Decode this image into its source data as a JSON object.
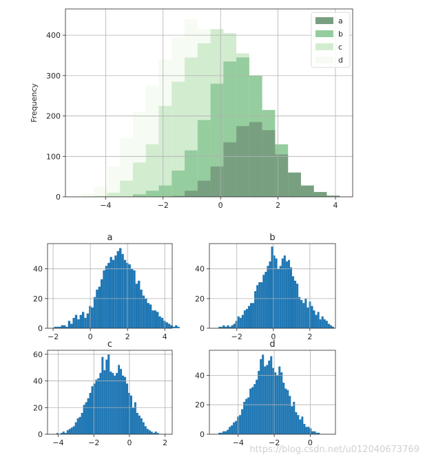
{
  "watermark": "https://blog.csdn.net/u012040673769",
  "colors": {
    "a": "#78a080",
    "b": "#96cd9e",
    "c": "#d2ecd0",
    "d": "#f6fbf3",
    "bar": "#1f77b4",
    "grid": "#b0b0b0",
    "axis": "#262626"
  },
  "chart_data": [
    {
      "type": "bar",
      "subtype": "overlaid-histogram",
      "title": "",
      "xlabel": "",
      "ylabel": "Frequency",
      "xlim": [
        -5.4,
        4.6
      ],
      "ylim": [
        0,
        465
      ],
      "xticks": [
        -4,
        -2,
        0,
        2,
        4
      ],
      "yticks": [
        0,
        100,
        200,
        300,
        400
      ],
      "grid": true,
      "legend": "top-right",
      "bin_edges": [
        -4.85,
        -4.4,
        -3.95,
        -3.5,
        -3.05,
        -2.6,
        -2.15,
        -1.7,
        -1.25,
        -0.8,
        -0.35,
        0.1,
        0.55,
        1.0,
        1.45,
        1.9,
        2.35,
        2.8,
        3.25,
        3.7,
        4.15
      ],
      "series": [
        {
          "name": "a",
          "color": "#78a080",
          "values": [
            0,
            0,
            0,
            0,
            0,
            0,
            0,
            2,
            15,
            40,
            75,
            135,
            175,
            185,
            165,
            105,
            60,
            28,
            12,
            3
          ]
        },
        {
          "name": "b",
          "color": "#96cd9e",
          "values": [
            0,
            0,
            0,
            0,
            6,
            15,
            28,
            65,
            115,
            190,
            280,
            335,
            345,
            300,
            215,
            130,
            60,
            20,
            6,
            0
          ]
        },
        {
          "name": "c",
          "color": "#d2ecd0",
          "values": [
            0,
            2,
            10,
            40,
            85,
            130,
            225,
            285,
            345,
            380,
            415,
            405,
            355,
            235,
            130,
            55,
            15,
            4,
            0,
            0
          ]
        },
        {
          "name": "d",
          "color": "#f6fbf3",
          "values": [
            8,
            25,
            75,
            145,
            210,
            275,
            340,
            395,
            440,
            415,
            385,
            345,
            235,
            130,
            55,
            15,
            3,
            0,
            0,
            0
          ]
        }
      ]
    },
    {
      "type": "bar",
      "subtype": "histogram",
      "title": "a",
      "xlim": [
        -2.3,
        4.4
      ],
      "ylim": [
        0,
        57
      ],
      "xticks": [
        -2,
        0,
        2,
        4
      ],
      "yticks": [
        0,
        20,
        40
      ],
      "bin_start": -1.95,
      "bin_width": 0.125,
      "values": [
        1,
        1,
        1,
        2,
        2,
        1,
        5,
        3,
        7,
        9,
        6,
        9,
        11,
        7,
        10,
        15,
        14,
        21,
        26,
        28,
        33,
        39,
        42,
        44,
        48,
        46,
        49,
        52,
        54,
        50,
        46,
        44,
        43,
        40,
        39,
        30,
        32,
        26,
        22,
        20,
        17,
        16,
        12,
        12,
        11,
        8,
        7,
        5,
        4,
        3,
        2,
        1,
        2,
        1
      ]
    },
    {
      "type": "bar",
      "subtype": "histogram",
      "title": "b",
      "xlim": [
        -3.5,
        3.4
      ],
      "ylim": [
        0,
        57
      ],
      "xticks": [
        -2,
        0,
        2
      ],
      "yticks": [
        0,
        20,
        40
      ],
      "bin_start": -3.0,
      "bin_width": 0.115,
      "values": [
        1,
        1,
        2,
        1,
        2,
        1,
        2,
        3,
        5,
        8,
        7,
        9,
        12,
        13,
        15,
        17,
        17,
        25,
        29,
        31,
        31,
        36,
        38,
        42,
        45,
        55,
        49,
        47,
        40,
        42,
        47,
        49,
        45,
        46,
        41,
        35,
        32,
        30,
        21,
        19,
        17,
        20,
        14,
        18,
        15,
        12,
        9,
        11,
        6,
        8,
        6,
        5,
        3,
        2,
        1
      ]
    },
    {
      "type": "bar",
      "subtype": "histogram",
      "title": "c",
      "xlim": [
        -4.6,
        2.4
      ],
      "ylim": [
        0,
        63
      ],
      "xticks": [
        -4,
        -2,
        0,
        2
      ],
      "yticks": [
        0,
        20,
        40,
        60
      ],
      "bin_start": -4.1,
      "bin_width": 0.115,
      "values": [
        1,
        0,
        1,
        2,
        1,
        3,
        4,
        5,
        6,
        9,
        12,
        13,
        16,
        22,
        24,
        27,
        31,
        36,
        38,
        41,
        42,
        46,
        58,
        48,
        56,
        60,
        47,
        46,
        44,
        46,
        52,
        49,
        44,
        43,
        38,
        31,
        29,
        20,
        24,
        16,
        14,
        12,
        9,
        6,
        4,
        3,
        2,
        1,
        2,
        1
      ]
    },
    {
      "type": "bar",
      "subtype": "histogram",
      "title": "d",
      "xlim": [
        -5.6,
        1.4
      ],
      "ylim": [
        0,
        57
      ],
      "xticks": [
        -4,
        -2,
        0
      ],
      "yticks": [
        0,
        20,
        40
      ],
      "bin_start": -5.1,
      "bin_width": 0.115,
      "values": [
        1,
        1,
        2,
        2,
        3,
        5,
        6,
        8,
        9,
        12,
        13,
        17,
        22,
        24,
        25,
        31,
        32,
        34,
        37,
        43,
        51,
        54,
        46,
        47,
        50,
        53,
        45,
        42,
        40,
        46,
        42,
        35,
        31,
        30,
        26,
        19,
        22,
        15,
        13,
        10,
        12,
        7,
        5,
        5,
        4,
        2,
        2,
        1,
        1
      ]
    }
  ]
}
